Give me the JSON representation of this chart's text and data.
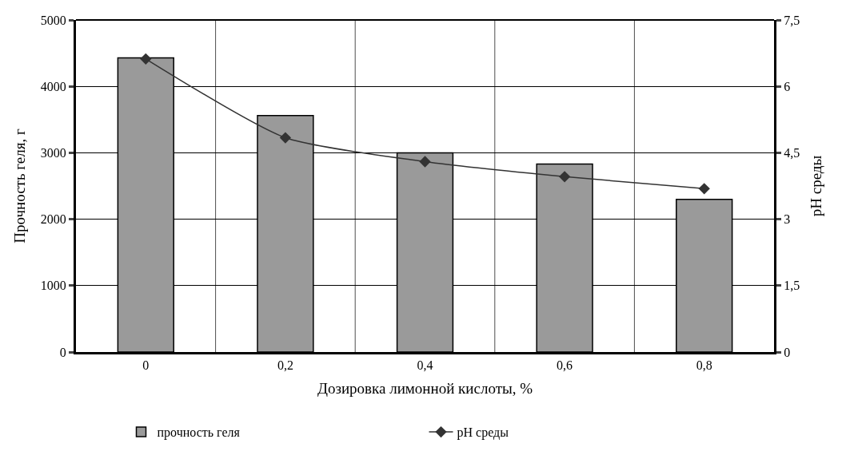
{
  "chart_data": {
    "type": "bar",
    "xlabel": "Дозировка лимонной кислоты, %",
    "ylabel": "Прочность геля, г",
    "y2label": "pH среды",
    "categories": [
      "0",
      "0,2",
      "0,4",
      "0,6",
      "0,8"
    ],
    "series": [
      {
        "name": "прочность геля",
        "color": "#9a9a9a",
        "values": [
          4430,
          3560,
          3000,
          2830,
          2300
        ]
      },
      {
        "name": "pH среды",
        "type": "line",
        "axis": "y2",
        "color": "#333333",
        "marker": "diamond",
        "values": [
          6.62,
          4.84,
          4.3,
          3.96,
          3.69
        ]
      }
    ],
    "ylim": [
      0,
      5000
    ],
    "yticks": [
      0,
      1000,
      2000,
      3000,
      4000,
      5000
    ],
    "y2lim": [
      0,
      7.5
    ],
    "y2ticks": [
      0,
      {
        "value": 1.5,
        "label": "1,5"
      },
      3,
      {
        "value": 4.5,
        "label": "4,5"
      },
      6,
      {
        "value": 7.5,
        "label": "7,5"
      }
    ],
    "grid": true,
    "legend": "bottom"
  }
}
